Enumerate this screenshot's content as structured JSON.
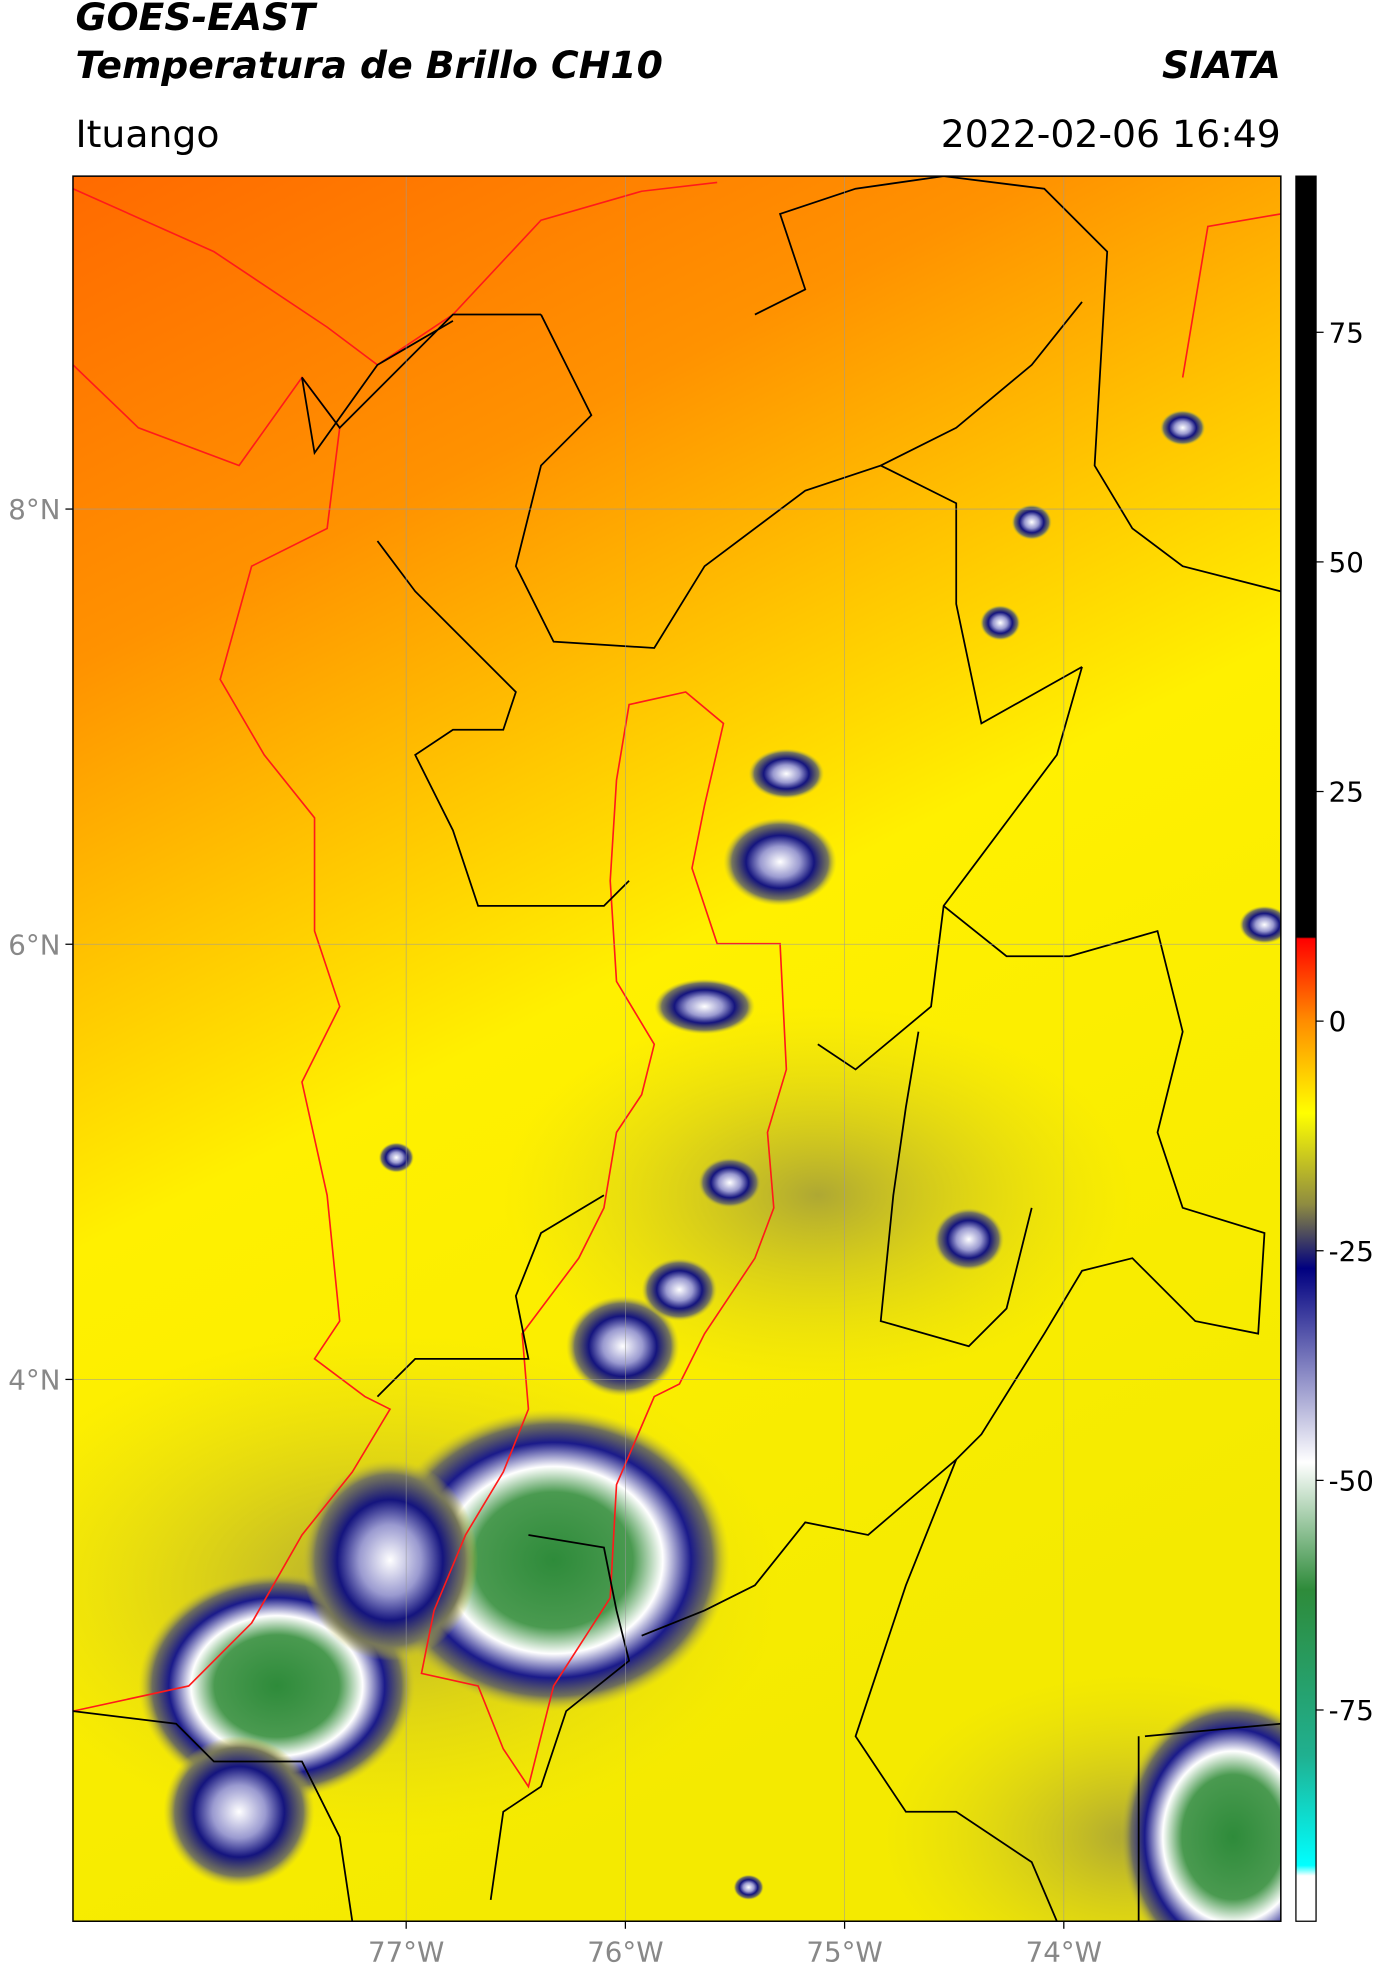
{
  "chart_data": {
    "type": "map",
    "title": "GOES-EAST",
    "subtitle": "Temperatura de Brillo CH10",
    "source": "SIATA",
    "location": "Ituango",
    "datetime": "2022-02-06 16:49",
    "xlim": [
      -78.52,
      -73.01
    ],
    "ylim": [
      1.51,
      9.53
    ],
    "xticks": [
      {
        "value": -77,
        "label": "77°W"
      },
      {
        "value": -76,
        "label": "76°W"
      },
      {
        "value": -75,
        "label": "75°W"
      },
      {
        "value": -74,
        "label": "74°W"
      }
    ],
    "yticks": [
      {
        "value": 8,
        "label": "8°N"
      },
      {
        "value": 6,
        "label": "6°N"
      },
      {
        "value": 4,
        "label": "4°N"
      }
    ],
    "colorbar": {
      "lim": [
        -98,
        92
      ],
      "ticks": [
        75,
        50,
        25,
        0,
        -25,
        -50,
        -75
      ]
    },
    "grid": true
  }
}
